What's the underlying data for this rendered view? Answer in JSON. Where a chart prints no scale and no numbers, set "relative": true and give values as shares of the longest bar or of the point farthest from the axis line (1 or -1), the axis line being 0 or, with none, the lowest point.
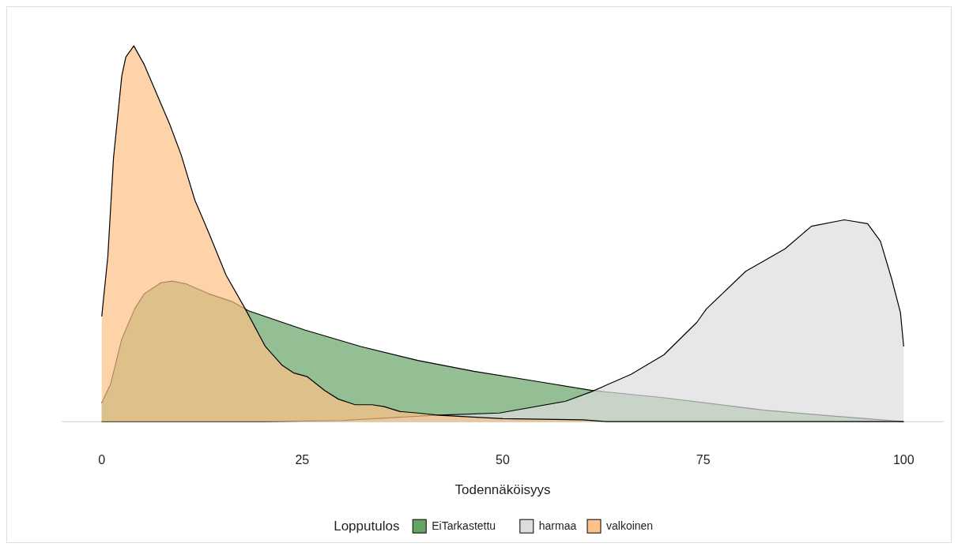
{
  "chart_data": {
    "type": "area",
    "relative": true,
    "xlabel": "Todennäköisyys",
    "legend_title": "Lopputulos",
    "legend": "bottom",
    "xlim": [
      -5,
      105
    ],
    "xticks": [
      0,
      25,
      50,
      75,
      100
    ],
    "series": [
      {
        "name": "EiTarkastettu",
        "color": "#66a466",
        "x": [
          0,
          1.1,
          2.5,
          4.1,
          5.3,
          7.4,
          8.8,
          10.6,
          13.4,
          16.2,
          18.3,
          25.3,
          32.3,
          39.4,
          46.4,
          54,
          61.1,
          70,
          82.4,
          90,
          100
        ],
        "values": [
          0.05,
          0.1,
          0.22,
          0.3,
          0.34,
          0.37,
          0.374,
          0.366,
          0.34,
          0.32,
          0.295,
          0.244,
          0.2,
          0.163,
          0.134,
          0.108,
          0.083,
          0.064,
          0.031,
          0.017,
          0
        ]
      },
      {
        "name": "harmaa",
        "color": "#dddddd",
        "x": [
          0,
          20,
          30,
          41.5,
          49.6,
          57.8,
          61.1,
          66,
          70.1,
          74.2,
          75.4,
          80.3,
          85.2,
          88.5,
          92.6,
          95.5,
          97.1,
          98.5,
          99.6,
          100
        ],
        "values": [
          0,
          0,
          0.003,
          0.017,
          0.023,
          0.054,
          0.08,
          0.126,
          0.178,
          0.264,
          0.3,
          0.4,
          0.46,
          0.52,
          0.537,
          0.527,
          0.48,
          0.38,
          0.29,
          0.2
        ]
      },
      {
        "name": "valkoinen",
        "color": "#fdc086",
        "x": [
          0,
          0.76,
          1.46,
          2.5,
          3,
          4,
          5.3,
          6.5,
          8.5,
          9.9,
          11.6,
          13.4,
          15.5,
          17.9,
          20.4,
          22.5,
          23.9,
          25.6,
          27.8,
          29.5,
          31.6,
          33.7,
          35.2,
          37.2,
          39.4,
          42.1,
          50,
          60,
          63,
          100
        ],
        "values": [
          0.28,
          0.44,
          0.7,
          0.92,
          0.97,
          1,
          0.95,
          0.89,
          0.79,
          0.71,
          0.59,
          0.5,
          0.39,
          0.3,
          0.2,
          0.15,
          0.13,
          0.12,
          0.083,
          0.06,
          0.045,
          0.045,
          0.04,
          0.027,
          0.023,
          0.017,
          0.008,
          0.005,
          0,
          0
        ]
      }
    ]
  }
}
